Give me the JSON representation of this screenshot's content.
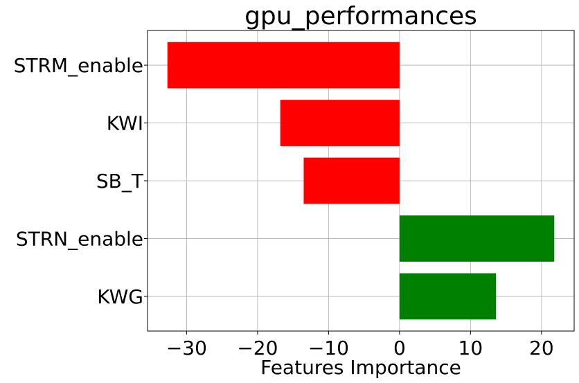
{
  "chart_data": {
    "type": "bar",
    "orientation": "horizontal",
    "title": "gpu_performances",
    "xlabel": "Features Importance",
    "ylabel": "",
    "categories": [
      "STRM_enable",
      "KWI",
      "SB_T",
      "STRN_enable",
      "KWG"
    ],
    "values": [
      -32.7,
      -16.8,
      -13.5,
      21.8,
      13.6
    ],
    "bar_colors": [
      "#ff0000",
      "#ff0000",
      "#ff0000",
      "#008000",
      "#008000"
    ],
    "xlim": [
      -35.5,
      24.6
    ],
    "xticks": [
      -30,
      -20,
      -10,
      0,
      10,
      20
    ],
    "xtick_labels": [
      "−30",
      "−20",
      "−10",
      "0",
      "10",
      "20"
    ],
    "grid": true
  }
}
